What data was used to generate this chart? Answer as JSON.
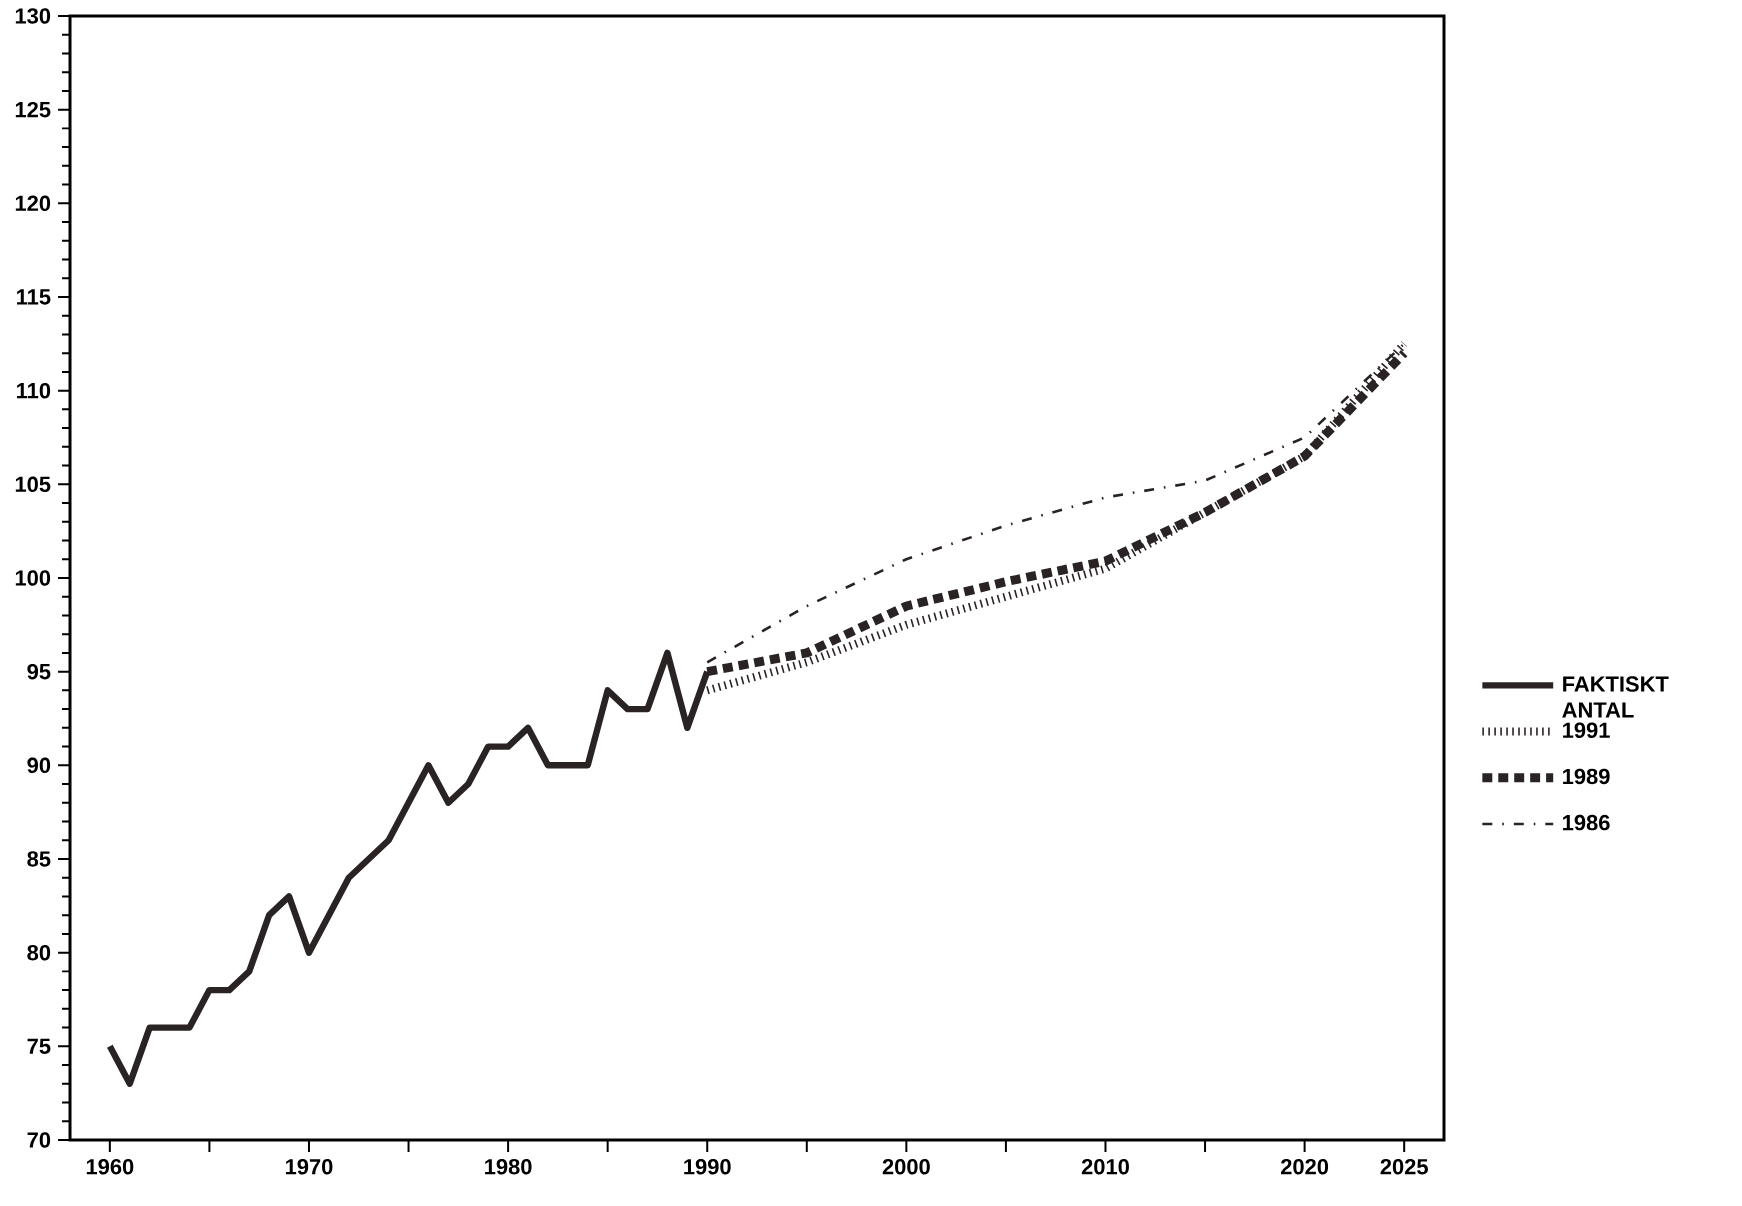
{
  "chart_data": {
    "type": "line",
    "xlim": [
      1958,
      2027
    ],
    "ylim": [
      70,
      130
    ],
    "xticks": [
      1960,
      {
        "value": 1965,
        "label": null
      },
      1970,
      {
        "value": 1975,
        "label": null
      },
      1980,
      {
        "value": 1985,
        "label": null
      },
      1990,
      {
        "value": 1995,
        "label": null
      },
      2000,
      {
        "value": 2005,
        "label": null
      },
      2010,
      {
        "value": 2015,
        "label": null
      },
      2020,
      2025
    ],
    "yticks": [
      70,
      75,
      80,
      85,
      90,
      95,
      100,
      105,
      110,
      115,
      120,
      125,
      130
    ],
    "grid": false,
    "legend": "right",
    "marker": "none",
    "series": [
      {
        "name": "FAKTISKT ANTAL",
        "color": "#2a2324",
        "line_style": "solid",
        "x": [
          1960,
          1961,
          1962,
          1963,
          1964,
          1965,
          1966,
          1967,
          1968,
          1969,
          1970,
          1971,
          1972,
          1973,
          1974,
          1975,
          1976,
          1977,
          1978,
          1979,
          1980,
          1981,
          1982,
          1983,
          1984,
          1985,
          1986,
          1987,
          1988,
          1989,
          1990
        ],
        "values": [
          75,
          73,
          76,
          76,
          76,
          78,
          78,
          79,
          82,
          83,
          80,
          82,
          84,
          85,
          86,
          88,
          90,
          88,
          89,
          91,
          91,
          92,
          90,
          90,
          90,
          94,
          93,
          93,
          96,
          92,
          95
        ]
      },
      {
        "name": "1991",
        "color": "#2a2324",
        "line_style": "dotted",
        "x": [
          1990,
          1995,
          2000,
          2005,
          2010,
          2015,
          2020,
          2025
        ],
        "values": [
          94,
          95.5,
          97.5,
          99,
          100.5,
          103.5,
          106.5,
          112.5
        ]
      },
      {
        "name": "1989",
        "color": "#2a2324",
        "line_style": "dashed",
        "x": [
          1990,
          1995,
          2000,
          2005,
          2010,
          2015,
          2020,
          2025
        ],
        "values": [
          95,
          96,
          98.5,
          99.8,
          100.9,
          103.5,
          106.5,
          112
        ]
      },
      {
        "name": "1986",
        "color": "#2a2324",
        "line_style": "dashdot",
        "x": [
          1990,
          1995,
          2000,
          2005,
          2010,
          2015,
          2020,
          2025
        ],
        "values": [
          95.5,
          98.5,
          101,
          102.8,
          104.3,
          105.2,
          107.5,
          112.5
        ]
      }
    ]
  }
}
